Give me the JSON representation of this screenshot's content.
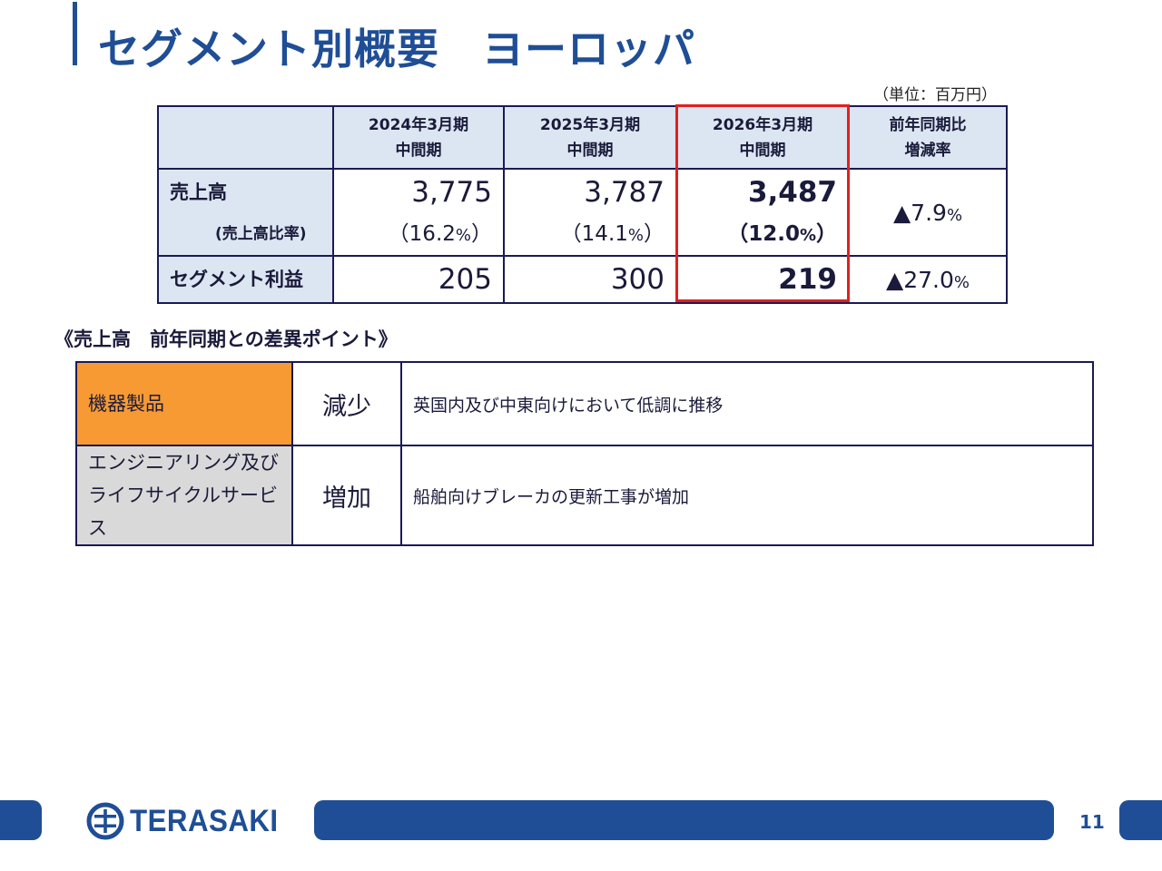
{
  "slide": {
    "title": "セグメント別概要　ヨーロッパ",
    "unit_note": "（単位：百万円）",
    "page_number": "11"
  },
  "summary_table": {
    "headers": [
      {
        "line1": "",
        "line2": ""
      },
      {
        "line1": "2024年3月期",
        "line2": "中間期"
      },
      {
        "line1": "2025年3月期",
        "line2": "中間期"
      },
      {
        "line1": "2026年3月期",
        "line2": "中間期"
      },
      {
        "line1": "前年同期比",
        "line2": "増減率"
      }
    ],
    "sales": {
      "label": "売上高",
      "ratio_label": "(売上高比率)",
      "values": [
        "3,775",
        "3,787",
        "3,487"
      ],
      "ratios": [
        {
          "num": "（16.2",
          "pct": "%",
          "close": "）"
        },
        {
          "num": "（14.1",
          "pct": "%",
          "close": "）"
        },
        {
          "num": "（12.0",
          "pct": "%",
          "close": "）"
        }
      ],
      "change": {
        "num": "▲7.9",
        "pct": "%"
      }
    },
    "segment_profit": {
      "label": "セグメント利益",
      "values": [
        "205",
        "300",
        "219"
      ],
      "change": {
        "num": "▲27.0",
        "pct": "%"
      }
    },
    "highlight_color": "#e02020"
  },
  "points": {
    "section_title": "《売上高　前年同期との差異ポイント》",
    "rows": [
      {
        "category": "機器製品",
        "direction": "減少",
        "description": "英国内及び中東向けにおいて低調に推移",
        "color": "#f79a33"
      },
      {
        "category": "エンジニアリング及び ライフサイクルサービス",
        "category_line1": "エンジニアリング及び",
        "category_line2": "ライフサイクルサービス",
        "direction": "増加",
        "description": "船舶向けブレーカの更新工事が増加",
        "color": "#d9d9d9"
      }
    ]
  },
  "footer": {
    "logo_text": "TERASAKI",
    "brand_color": "#1f4e96"
  }
}
